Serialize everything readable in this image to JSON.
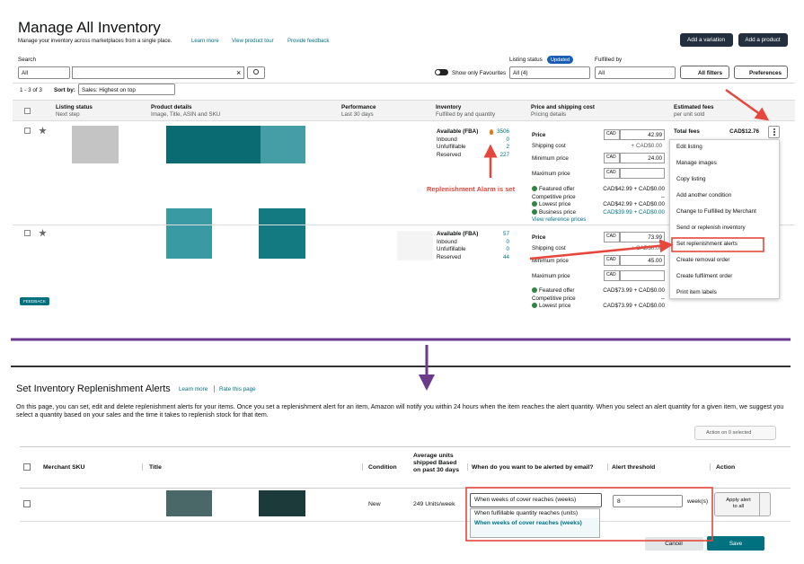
{
  "inventory_page": {
    "title": "Manage All Inventory",
    "subtitle": "Manage your inventory across marketplaces from a single place.",
    "links": [
      "Learn more",
      "View product tour",
      "Provide feedback"
    ],
    "buttons": [
      "Add a variation",
      "Add a product"
    ],
    "search_label": "Search",
    "search_scope": "All",
    "search_clear": "×",
    "listing_status_label": "Listing status",
    "listing_status_badge": "Updated",
    "fulfilled_by_label": "Fulfilled by",
    "favourites_toggle": "Show only Favourites",
    "listing_status_value": "All (4)",
    "fulfilled_by_value": "All",
    "filters_button": "All filters",
    "preferences_button": "Preferences",
    "result_count": "1 - 3 of 3",
    "sort_label": "Sort by:",
    "sort_value": "Sales: Highest on top",
    "columns": [
      {
        "title": "Listing status",
        "subtitle": "Next step"
      },
      {
        "title": "Product details",
        "subtitle": "Image, Title, ASIN and SKU"
      },
      {
        "title": "Performance",
        "subtitle": "Last 30 days"
      },
      {
        "title": "Inventory",
        "subtitle": "Fulfilled by and quantity"
      },
      {
        "title": "Price and shipping cost",
        "subtitle": "Pricing details"
      },
      {
        "title": "Estimated fees",
        "subtitle": "per unit sold"
      }
    ],
    "rows": [
      {
        "inventory": [
          {
            "label": "Available (FBA)",
            "value": "3506"
          },
          {
            "label": "Inbound",
            "value": "0"
          },
          {
            "label": "Unfulfillable",
            "value": "2"
          },
          {
            "label": "Reserved",
            "value": "227"
          }
        ],
        "prices": [
          {
            "label": "Price",
            "currency": "CAD",
            "value": "42.99"
          },
          {
            "label": "Shipping cost",
            "value": "+ CAD$0.00"
          },
          {
            "label": "Minimum price",
            "currency": "CAD",
            "value": "24.00"
          },
          {
            "label": "Maximum price",
            "currency": "CAD"
          }
        ],
        "offers": [
          {
            "label": "Featured offer",
            "value": "CAD$42.99 + CAD$0.00"
          },
          {
            "label": "Competitive price",
            "value": "--"
          },
          {
            "label": "Lowest price",
            "value": "CAD$42.99 + CAD$0.00"
          },
          {
            "label": "Business price",
            "value": "CAD$39.99 + CAD$0.00"
          }
        ],
        "reference_link": "View reference prices",
        "fees_label": "Total fees",
        "fees_value": "CAD$12.76"
      },
      {
        "inventory": [
          {
            "label": "Available (FBA)",
            "value": "57"
          },
          {
            "label": "Inbound",
            "value": "0"
          },
          {
            "label": "Unfulfillable",
            "value": "0"
          },
          {
            "label": "Reserved",
            "value": "44"
          }
        ],
        "prices": [
          {
            "label": "Price",
            "currency": "CAD",
            "value": "73.99"
          },
          {
            "label": "Shipping cost",
            "value": "+ CAD$0.00"
          },
          {
            "label": "Minimum price",
            "currency": "CAD",
            "value": "45.00"
          },
          {
            "label": "Maximum price",
            "currency": "CAD"
          }
        ],
        "offers": [
          {
            "label": "Featured offer",
            "value": "CAD$73.99 + CAD$0.00"
          },
          {
            "label": "Competitive price",
            "value": "--"
          },
          {
            "label": "Lowest price",
            "value": "CAD$73.99 + CAD$0.00"
          }
        ]
      }
    ],
    "menu": [
      "Edit listing",
      "Manage images",
      "Copy listing",
      "Add another condition",
      "Change to Fulfilled by Merchant",
      "Send or replenish inventory",
      "Set replenishment alerts",
      "Create removal order",
      "Create fulfilment order",
      "Print item labels"
    ],
    "feedback": "FEEDBACK"
  },
  "annotation": "Replenishment Alarm is set",
  "alerts_page": {
    "title": "Set Inventory Replenishment Alerts",
    "links": [
      "Learn more",
      "Rate this page"
    ],
    "description": "On this page, you can set, edit and delete replenishment alerts for your items. Once you set a replenishment alert for an item, Amazon will notify you within 24 hours when the item reaches the alert quantity. When you select an alert quantity for a given item, we suggest you select a quantity based on your sales and the time it takes to replenish stock for that item.",
    "bulk_action": "Action on 0 selected",
    "columns": [
      "Merchant SKU",
      "Title",
      "Condition",
      "Average units shipped Based on past 30 days",
      "When do you want to be alerted by email?",
      "Alert threshold",
      "Action"
    ],
    "row": {
      "condition": "New",
      "average_units": "249 Units/week",
      "alert_type": "When weeks of cover reaches (weeks)",
      "alert_options": [
        "When fulfillable quantity reaches (units)",
        "When weeks of cover reaches (weeks)"
      ],
      "threshold": "8",
      "threshold_unit": "week(s)",
      "apply_button": "Apply alert to all"
    },
    "cancel_button": "Cancel",
    "save_button": "Save"
  }
}
